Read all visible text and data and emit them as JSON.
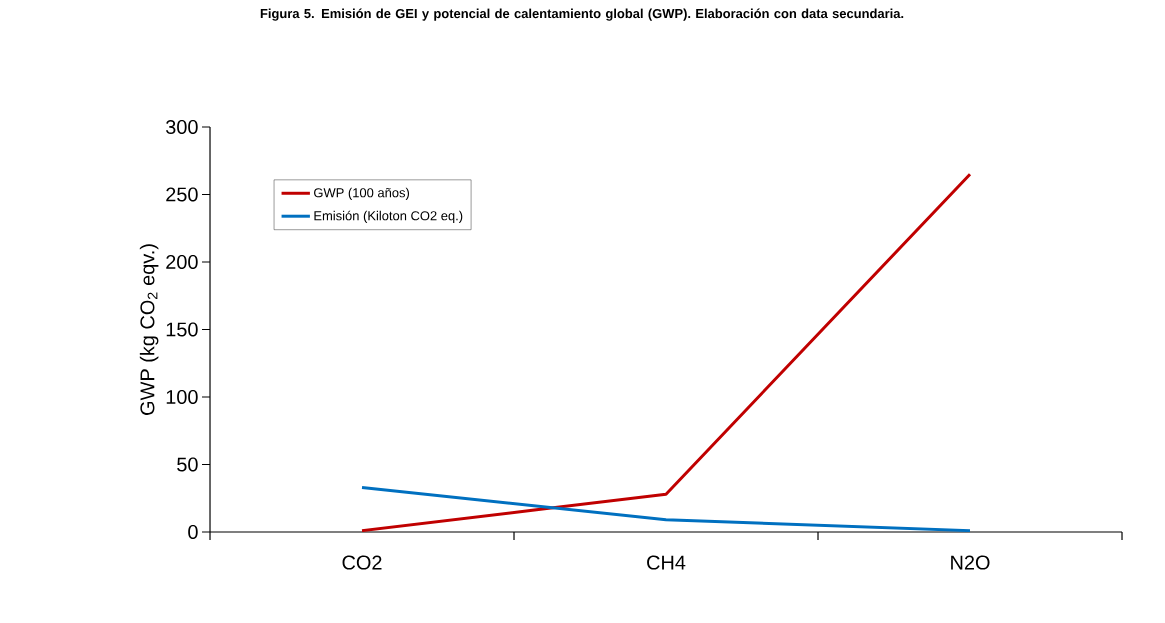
{
  "chart_data": {
    "type": "line",
    "title": "Figura 5. Emisión de GEI y potencial de calentamiento global (GWP). Elaboración con data secundaria.",
    "ylabel": "GWP (kg CO$_{2}$ eqv.)",
    "categories": [
      "CO2",
      "CH4",
      "N2O"
    ],
    "series": [
      {
        "name": "GWP (100 años)",
        "color": "#c00000",
        "values": [
          1,
          28,
          265
        ]
      },
      {
        "name": "Emisión (Kiloton CO2 eq.)",
        "color": "#0070c0",
        "values": [
          33,
          9,
          1
        ]
      }
    ],
    "ylim": [
      0,
      300
    ],
    "yticks": [
      0,
      50,
      100,
      150,
      200,
      250,
      300
    ],
    "grid": false,
    "legend": "top left",
    "marker": "none",
    "line_style": "solid"
  }
}
